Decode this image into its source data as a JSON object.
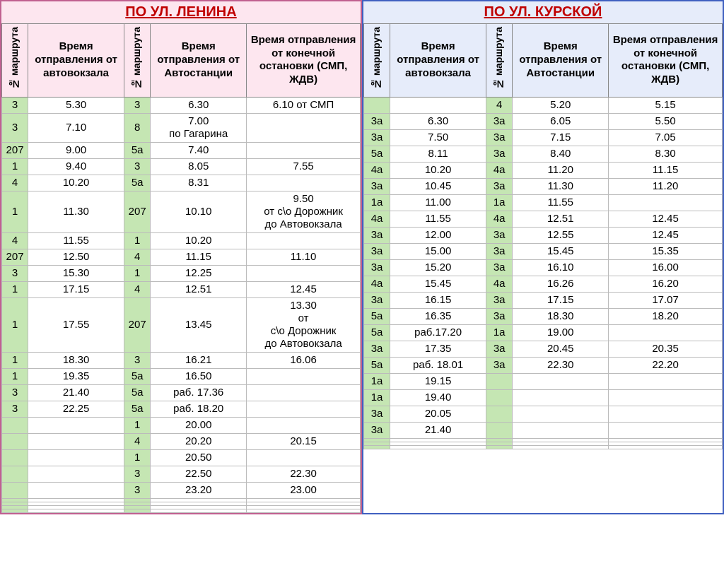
{
  "sections": [
    {
      "title": "ПО УЛ. ЛЕНИНА",
      "side": "left",
      "headers": {
        "route": "№ маршрута",
        "col1": "Время отправления от автовокзала",
        "col2": "Время отправления от Автостанции",
        "col3": "Время отправления от конечной остановки (СМП, ЖДВ)"
      },
      "rows": [
        {
          "r1": "3",
          "t1": "5.30",
          "r2": "3",
          "t2": "6.30",
          "t3": "6.10 от СМП"
        },
        {
          "r1": "3",
          "t1": "7.10",
          "r2": "8",
          "t2": "7.00\nпо Гагарина",
          "t3": ""
        },
        {
          "r1": "207",
          "t1": "9.00",
          "r2": "5а",
          "t2": "7.40",
          "t3": ""
        },
        {
          "r1": "1",
          "t1": "9.40",
          "r2": "3",
          "t2": "8.05",
          "t3": "7.55"
        },
        {
          "r1": "4",
          "t1": "10.20",
          "r2": "5а",
          "t2": "8.31",
          "t3": ""
        },
        {
          "r1": "1",
          "t1": "11.30",
          "r2": "207",
          "t2": "10.10",
          "t3": "9.50\nот с\\о Дорожник\nдо Автовокзала"
        },
        {
          "r1": "4",
          "t1": "11.55",
          "r2": "1",
          "t2": "10.20",
          "t3": ""
        },
        {
          "r1": "207",
          "t1": "12.50",
          "r2": "4",
          "t2": "11.15",
          "t3": "11.10"
        },
        {
          "r1": "3",
          "t1": "15.30",
          "r2": "1",
          "t2": "12.25",
          "t3": ""
        },
        {
          "r1": "1",
          "t1": "17.15",
          "r2": "4",
          "t2": "12.51",
          "t3": "12.45"
        },
        {
          "r1": "1",
          "t1": "17.55",
          "r2": "207",
          "t2": "13.45",
          "t3": "13.30\nот\nс\\о Дорожник\nдо Автовокзала"
        },
        {
          "r1": "1",
          "t1": "18.30",
          "r2": "3",
          "t2": "16.21",
          "t3": "16.06"
        },
        {
          "r1": "1",
          "t1": "19.35",
          "r2": "5а",
          "t2": "16.50",
          "t3": ""
        },
        {
          "r1": "3",
          "t1": "21.40",
          "r2": "5а",
          "t2": "раб. 17.36",
          "t3": ""
        },
        {
          "r1": "3",
          "t1": "22.25",
          "r2": "5а",
          "t2": "раб. 18.20",
          "t3": ""
        },
        {
          "r1": "",
          "t1": "",
          "r2": "1",
          "t2": "20.00",
          "t3": ""
        },
        {
          "r1": "",
          "t1": "",
          "r2": "4",
          "t2": "20.20",
          "t3": "20.15"
        },
        {
          "r1": "",
          "t1": "",
          "r2": "1",
          "t2": "20.50",
          "t3": ""
        },
        {
          "r1": "",
          "t1": "",
          "r2": "3",
          "t2": "22.50",
          "t3": "22.30"
        },
        {
          "r1": "",
          "t1": "",
          "r2": "3",
          "t2": "23.20",
          "t3": "23.00"
        },
        {
          "r1": "",
          "t1": "",
          "r2": "",
          "t2": "",
          "t3": ""
        },
        {
          "r1": "",
          "t1": "",
          "r2": "",
          "t2": "",
          "t3": ""
        },
        {
          "r1": "",
          "t1": "",
          "r2": "",
          "t2": "",
          "t3": ""
        },
        {
          "r1": "",
          "t1": "",
          "r2": "",
          "t2": "",
          "t3": ""
        }
      ]
    },
    {
      "title": "ПО УЛ. КУРСКОЙ",
      "side": "right",
      "headers": {
        "route": "№ маршрута",
        "col1": "Время отправления от автовокзала",
        "col2": "Время отправления от Автостанции",
        "col3": "Время отправления от конечной остановки (СМП, ЖДВ)"
      },
      "rows": [
        {
          "r1": "",
          "t1": "",
          "r2": "4",
          "t2": "5.20",
          "t3": "5.15"
        },
        {
          "r1": "3а",
          "t1": "6.30",
          "r2": "3а",
          "t2": "6.05",
          "t3": "5.50"
        },
        {
          "r1": "3а",
          "t1": "7.50",
          "r2": "3а",
          "t2": "7.15",
          "t3": "7.05"
        },
        {
          "r1": "5а",
          "t1": "8.11",
          "r2": "3а",
          "t2": "8.40",
          "t3": "8.30"
        },
        {
          "r1": "4а",
          "t1": "10.20",
          "r2": "4а",
          "t2": "11.20",
          "t3": "11.15"
        },
        {
          "r1": "3а",
          "t1": "10.45",
          "r2": "3а",
          "t2": "11.30",
          "t3": "11.20"
        },
        {
          "r1": "1а",
          "t1": "11.00",
          "r2": "1а",
          "t2": "11.55",
          "t3": ""
        },
        {
          "r1": "4а",
          "t1": "11.55",
          "r2": "4а",
          "t2": "12.51",
          "t3": "12.45"
        },
        {
          "r1": "3а",
          "t1": "12.00",
          "r2": "3а",
          "t2": "12.55",
          "t3": "12.45"
        },
        {
          "r1": "3а",
          "t1": "15.00",
          "r2": "3а",
          "t2": "15.45",
          "t3": "15.35"
        },
        {
          "r1": "3а",
          "t1": "15.20",
          "r2": "3а",
          "t2": "16.10",
          "t3": "16.00"
        },
        {
          "r1": "4а",
          "t1": "15.45",
          "r2": "4а",
          "t2": "16.26",
          "t3": "16.20"
        },
        {
          "r1": "3а",
          "t1": "16.15",
          "r2": "3а",
          "t2": "17.15",
          "t3": "17.07"
        },
        {
          "r1": "5а",
          "t1": "16.35",
          "r2": "3а",
          "t2": "18.30",
          "t3": "18.20"
        },
        {
          "r1": "5а",
          "t1": "раб.17.20",
          "r2": "1а",
          "t2": "19.00",
          "t3": ""
        },
        {
          "r1": "3а",
          "t1": "17.35",
          "r2": "3а",
          "t2": "20.45",
          "t3": "20.35"
        },
        {
          "r1": "5а",
          "t1": "раб. 18.01",
          "r2": "3а",
          "t2": "22.30",
          "t3": "22.20"
        },
        {
          "r1": "1а",
          "t1": "19.15",
          "r2": "",
          "t2": "",
          "t3": ""
        },
        {
          "r1": "1а",
          "t1": "19.40",
          "r2": "",
          "t2": "",
          "t3": ""
        },
        {
          "r1": "3а",
          "t1": "20.05",
          "r2": "",
          "t2": "",
          "t3": ""
        },
        {
          "r1": "3а",
          "t1": "21.40",
          "r2": "",
          "t2": "",
          "t3": ""
        },
        {
          "r1": "",
          "t1": "",
          "r2": "",
          "t2": "",
          "t3": ""
        },
        {
          "r1": "",
          "t1": "",
          "r2": "",
          "t2": "",
          "t3": ""
        },
        {
          "r1": "",
          "t1": "",
          "r2": "",
          "t2": "",
          "t3": ""
        }
      ]
    }
  ],
  "colors": {
    "left_border": "#c06090",
    "right_border": "#4060c0",
    "left_header_bg": "#fde6ef",
    "right_header_bg": "#e6ecfa",
    "route_cell_bg": "#c5e6b3",
    "title_color": "#c00000"
  }
}
